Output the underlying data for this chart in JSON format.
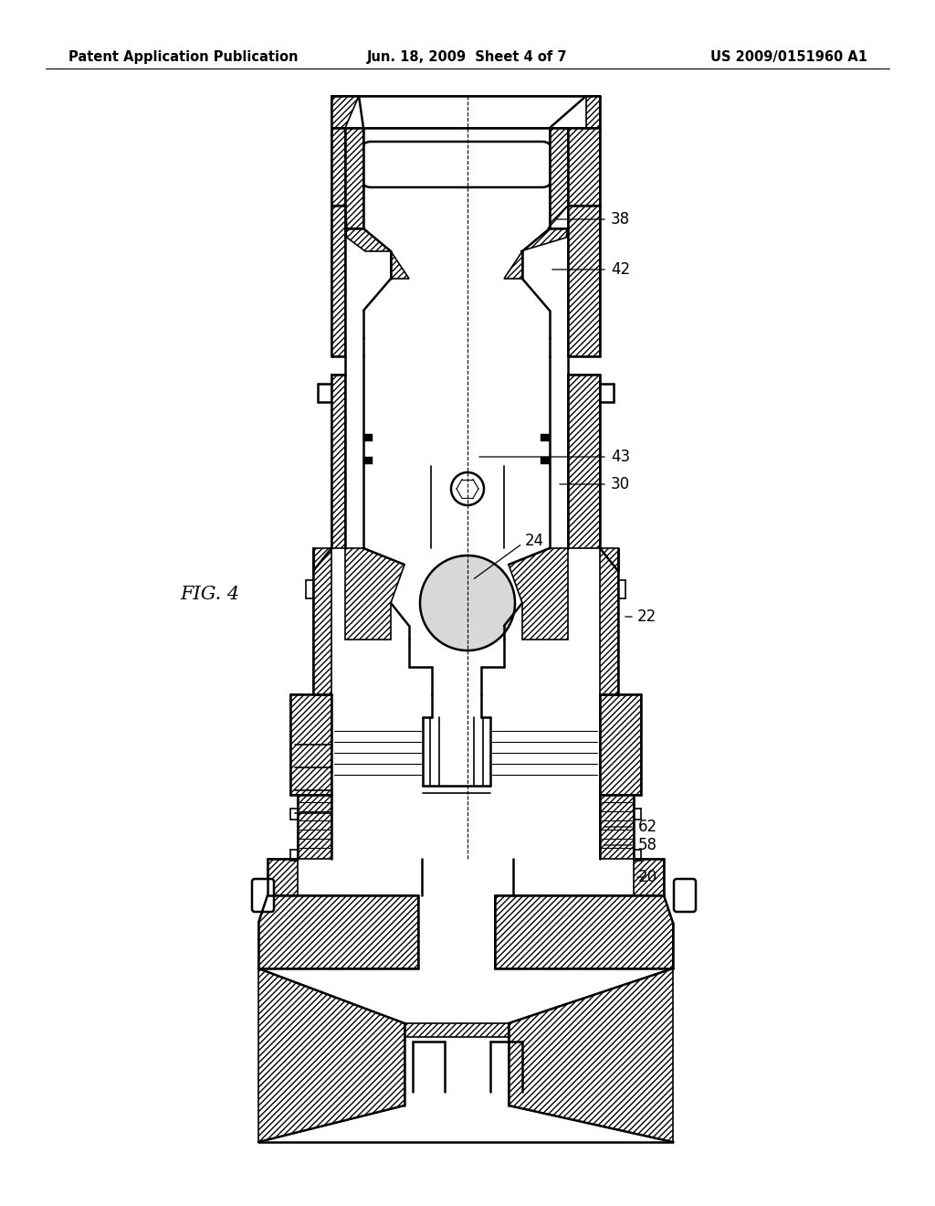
{
  "header_left": "Patent Application Publication",
  "header_center": "Jun. 18, 2009  Sheet 4 of 7",
  "header_right": "US 2009/0151960 A1",
  "fig_label": "FIG. 4",
  "bg_color": "#ffffff",
  "header_fontsize": 10.5,
  "label_fontsize": 12,
  "fig_label_fontsize": 15
}
